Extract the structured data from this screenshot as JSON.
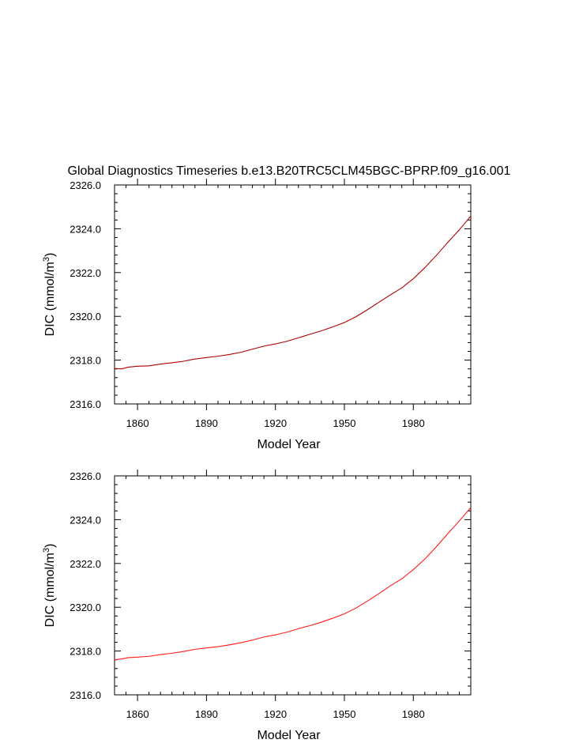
{
  "title": "Global Diagnostics Timeseries b.e13.B20TRC5CLM45BGC-BPRP.f09_g16.001",
  "chart_data": [
    {
      "type": "line",
      "xlabel": "Model Year",
      "ylabel_prefix": "DIC (mmol/m",
      "ylabel_sup": "3",
      "ylabel_suffix": ")",
      "xlim": [
        1850,
        2005
      ],
      "ylim": [
        2316.0,
        2326.0
      ],
      "x_ticks": [
        1860,
        1890,
        1920,
        1950,
        1980
      ],
      "x_tick_labels": [
        "1860",
        "1890",
        "1920",
        "1950",
        "1980"
      ],
      "y_ticks": [
        2316.0,
        2318.0,
        2320.0,
        2322.0,
        2324.0,
        2326.0
      ],
      "y_tick_labels": [
        "2316.0",
        "2318.0",
        "2320.0",
        "2322.0",
        "2324.0",
        "2326.0"
      ],
      "series": [
        {
          "name": "DIC",
          "color": "#b00000",
          "x": [
            1850,
            1853,
            1856,
            1860,
            1865,
            1870,
            1875,
            1880,
            1885,
            1890,
            1895,
            1900,
            1905,
            1910,
            1915,
            1920,
            1925,
            1930,
            1935,
            1940,
            1945,
            1950,
            1955,
            1960,
            1965,
            1970,
            1975,
            1980,
            1985,
            1990,
            1995,
            2000,
            2005
          ],
          "y": [
            2317.62,
            2317.6,
            2317.68,
            2317.72,
            2317.74,
            2317.82,
            2317.88,
            2317.95,
            2318.05,
            2318.12,
            2318.18,
            2318.26,
            2318.36,
            2318.5,
            2318.64,
            2318.74,
            2318.86,
            2319.02,
            2319.18,
            2319.34,
            2319.52,
            2319.72,
            2319.98,
            2320.3,
            2320.64,
            2320.98,
            2321.3,
            2321.72,
            2322.22,
            2322.78,
            2323.38,
            2323.95,
            2324.58
          ]
        }
      ]
    },
    {
      "type": "line",
      "xlabel": "Model Year",
      "ylabel_prefix": "DIC (mmol/m",
      "ylabel_sup": "3",
      "ylabel_suffix": ")",
      "xlim": [
        1850,
        2005
      ],
      "ylim": [
        2316.0,
        2326.0
      ],
      "x_ticks": [
        1860,
        1890,
        1920,
        1950,
        1980
      ],
      "x_tick_labels": [
        "1860",
        "1890",
        "1920",
        "1950",
        "1980"
      ],
      "y_ticks": [
        2316.0,
        2318.0,
        2320.0,
        2322.0,
        2324.0,
        2326.0
      ],
      "y_tick_labels": [
        "2316.0",
        "2318.0",
        "2320.0",
        "2322.0",
        "2324.0",
        "2326.0"
      ],
      "series": [
        {
          "name": "DIC",
          "color": "#ff1a1a",
          "x": [
            1850,
            1853,
            1856,
            1860,
            1865,
            1870,
            1875,
            1880,
            1885,
            1890,
            1895,
            1900,
            1905,
            1910,
            1915,
            1920,
            1925,
            1930,
            1935,
            1940,
            1945,
            1950,
            1955,
            1960,
            1965,
            1970,
            1975,
            1980,
            1985,
            1990,
            1995,
            2000,
            2005
          ],
          "y": [
            2317.6,
            2317.64,
            2317.7,
            2317.72,
            2317.76,
            2317.84,
            2317.9,
            2317.98,
            2318.08,
            2318.14,
            2318.2,
            2318.28,
            2318.38,
            2318.5,
            2318.64,
            2318.74,
            2318.86,
            2319.02,
            2319.16,
            2319.32,
            2319.5,
            2319.7,
            2319.96,
            2320.28,
            2320.62,
            2320.98,
            2321.3,
            2321.72,
            2322.2,
            2322.76,
            2323.36,
            2323.94,
            2324.55
          ]
        }
      ]
    }
  ]
}
